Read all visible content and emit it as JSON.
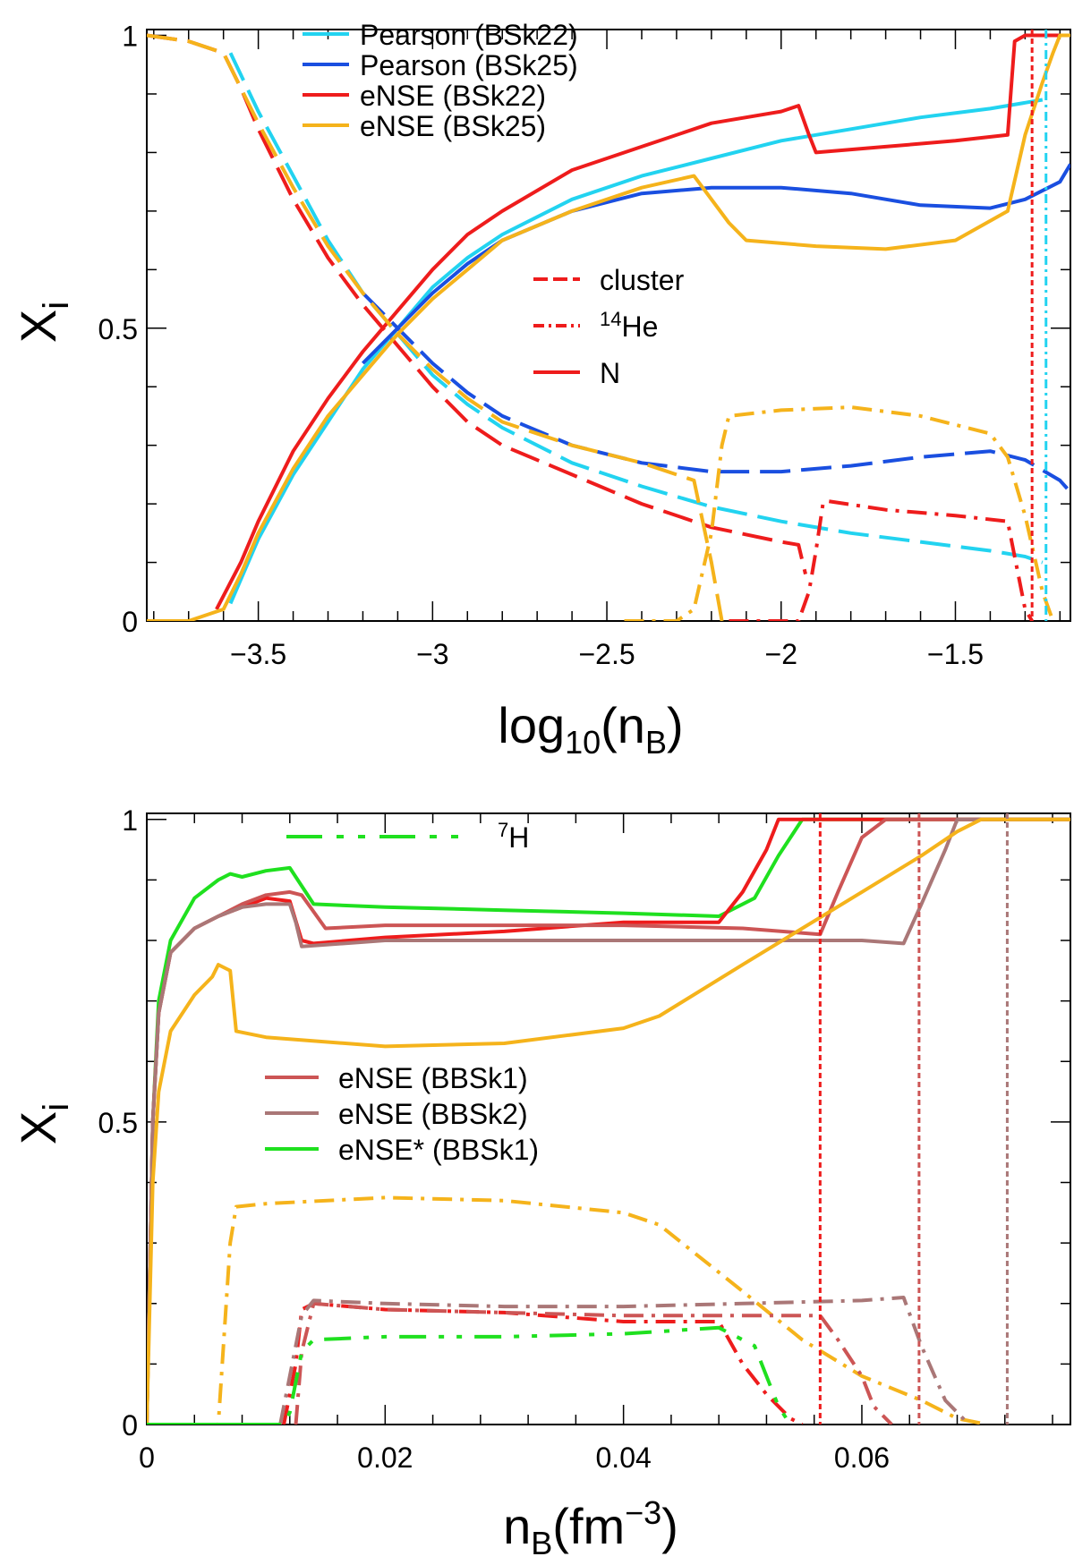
{
  "chart_data": [
    {
      "type": "line",
      "xlabel_base": "log",
      "xlabel_sub": "10",
      "xlabel_open": "(n",
      "xlabel_sub2": "B",
      "xlabel_close": ")",
      "ylabel_main": "X",
      "ylabel_sub": "i",
      "xlim": [
        -3.82,
        -1.17
      ],
      "ylim": [
        0,
        1.01
      ],
      "xticks": [
        -3.5,
        -3,
        -2.5,
        -2,
        -1.5
      ],
      "xtick_labels": [
        "−3.5",
        "−3",
        "−2.5",
        "−2",
        "−1.5"
      ],
      "yticks": [
        0,
        0.5,
        1
      ],
      "ytick_labels": [
        "0",
        "0.5",
        "1"
      ],
      "legend_models": [
        {
          "label": "Pearson (BSk22)",
          "color": "#22d3f0"
        },
        {
          "label": "Pearson (BSk25)",
          "color": "#1a4fe0"
        },
        {
          "label": "eNSE (BSk22)",
          "color": "#ee1c1c"
        },
        {
          "label": "eNSE (BSk25)",
          "color": "#f5b31b"
        }
      ],
      "legend_species": [
        {
          "label": "cluster",
          "style": "dashed",
          "color": "#ee1c1c"
        },
        {
          "sup": "14",
          "label": "He",
          "style": "dashdot",
          "color": "#ee1c1c"
        },
        {
          "label": "N",
          "style": "solid",
          "color": "#ee1c1c"
        }
      ],
      "vlines": [
        {
          "x": -1.28,
          "color": "#ee1c1c",
          "style": "dotted"
        },
        {
          "x": -1.24,
          "color": "#22d3f0",
          "style": "dashdot"
        }
      ],
      "series": [
        {
          "name": "Pearson (BSk22) N",
          "color": "#22d3f0",
          "style": "solid",
          "x": [
            -3.58,
            -3.5,
            -3.4,
            -3.3,
            -3.2,
            -3.1,
            -3.0,
            -2.9,
            -2.8,
            -2.6,
            -2.4,
            -2.2,
            -2.0,
            -1.8,
            -1.6,
            -1.4,
            -1.3,
            -1.25
          ],
          "y": [
            0.03,
            0.14,
            0.25,
            0.34,
            0.43,
            0.5,
            0.57,
            0.62,
            0.66,
            0.72,
            0.76,
            0.79,
            0.82,
            0.84,
            0.86,
            0.875,
            0.885,
            0.89
          ]
        },
        {
          "name": "Pearson (BSk22) cluster",
          "color": "#22d3f0",
          "style": "dashed",
          "x": [
            -3.58,
            -3.5,
            -3.4,
            -3.3,
            -3.2,
            -3.1,
            -3.0,
            -2.9,
            -2.8,
            -2.6,
            -2.4,
            -2.2,
            -2.0,
            -1.8,
            -1.6,
            -1.4,
            -1.3,
            -1.25
          ],
          "y": [
            0.97,
            0.87,
            0.76,
            0.65,
            0.56,
            0.49,
            0.42,
            0.37,
            0.33,
            0.27,
            0.23,
            0.195,
            0.17,
            0.15,
            0.135,
            0.12,
            0.11,
            0.1
          ]
        },
        {
          "name": "Pearson (BSk25) N",
          "color": "#1a4fe0",
          "style": "solid",
          "x": [
            -3.2,
            -3.1,
            -3.0,
            -2.9,
            -2.8,
            -2.6,
            -2.4,
            -2.2,
            -2.0,
            -1.8,
            -1.6,
            -1.4,
            -1.3,
            -1.2,
            -1.17
          ],
          "y": [
            0.44,
            0.5,
            0.56,
            0.61,
            0.65,
            0.7,
            0.73,
            0.74,
            0.74,
            0.73,
            0.71,
            0.705,
            0.72,
            0.75,
            0.78
          ]
        },
        {
          "name": "Pearson (BSk25) cluster",
          "color": "#1a4fe0",
          "style": "dashed",
          "x": [
            -3.2,
            -3.1,
            -3.0,
            -2.9,
            -2.8,
            -2.6,
            -2.4,
            -2.2,
            -2.0,
            -1.8,
            -1.6,
            -1.4,
            -1.3,
            -1.2,
            -1.17
          ],
          "y": [
            0.56,
            0.5,
            0.44,
            0.39,
            0.35,
            0.3,
            0.27,
            0.255,
            0.255,
            0.265,
            0.28,
            0.29,
            0.275,
            0.24,
            0.22
          ]
        },
        {
          "name": "eNSE (BSk22) N",
          "color": "#ee1c1c",
          "style": "solid",
          "x": [
            -3.62,
            -3.55,
            -3.5,
            -3.4,
            -3.3,
            -3.2,
            -3.1,
            -3.0,
            -2.9,
            -2.8,
            -2.6,
            -2.4,
            -2.2,
            -2.0,
            -1.95,
            -1.92,
            -1.9,
            -1.7,
            -1.5,
            -1.35,
            -1.33,
            -1.3,
            -1.17
          ],
          "y": [
            0.02,
            0.1,
            0.17,
            0.29,
            0.38,
            0.46,
            0.53,
            0.6,
            0.66,
            0.7,
            0.77,
            0.81,
            0.85,
            0.87,
            0.88,
            0.83,
            0.8,
            0.81,
            0.82,
            0.83,
            0.99,
            1.0,
            1.0
          ]
        },
        {
          "name": "eNSE (BSk22) cluster",
          "color": "#ee1c1c",
          "style": "dashed",
          "x": [
            -3.82,
            -3.7,
            -3.6,
            -3.55,
            -3.5,
            -3.4,
            -3.3,
            -3.2,
            -3.1,
            -3.0,
            -2.9,
            -2.8,
            -2.6,
            -2.4,
            -2.2,
            -2.0,
            -1.95,
            -1.93
          ],
          "y": [
            1.0,
            0.99,
            0.97,
            0.91,
            0.84,
            0.72,
            0.62,
            0.54,
            0.47,
            0.4,
            0.34,
            0.3,
            0.25,
            0.2,
            0.16,
            0.135,
            0.13,
            0.08
          ]
        },
        {
          "name": "eNSE (BSk22) 14He",
          "color": "#ee1c1c",
          "style": "dashdot",
          "x": [
            -2.15,
            -2.0,
            -1.95,
            -1.92,
            -1.9,
            -1.88,
            -1.87,
            -1.7,
            -1.5,
            -1.35,
            -1.32,
            -1.3,
            -1.28
          ],
          "y": [
            0.0,
            0.0,
            0.0,
            0.05,
            0.12,
            0.2,
            0.205,
            0.19,
            0.18,
            0.17,
            0.08,
            0.02,
            0.0
          ]
        },
        {
          "name": "eNSE (BSk25) N",
          "color": "#f5b31b",
          "style": "solid",
          "x": [
            -3.82,
            -3.7,
            -3.6,
            -3.55,
            -3.5,
            -3.4,
            -3.3,
            -3.2,
            -3.1,
            -3.0,
            -2.9,
            -2.8,
            -2.6,
            -2.4,
            -2.25,
            -2.15,
            -2.1,
            -1.9,
            -1.7,
            -1.5,
            -1.35,
            -1.3,
            -1.25,
            -1.22,
            -1.2,
            -1.17
          ],
          "y": [
            0.0,
            0.0,
            0.02,
            0.08,
            0.15,
            0.26,
            0.35,
            0.42,
            0.49,
            0.55,
            0.6,
            0.65,
            0.7,
            0.74,
            0.76,
            0.68,
            0.65,
            0.64,
            0.635,
            0.65,
            0.7,
            0.83,
            0.92,
            0.97,
            1.0,
            1.0
          ]
        },
        {
          "name": "eNSE (BSk25) cluster",
          "color": "#f5b31b",
          "style": "dashed",
          "x": [
            -3.82,
            -3.7,
            -3.6,
            -3.55,
            -3.5,
            -3.4,
            -3.3,
            -3.2,
            -3.1,
            -3.0,
            -2.9,
            -2.8,
            -2.6,
            -2.4,
            -2.3,
            -2.25,
            -2.2,
            -2.17
          ],
          "y": [
            1.0,
            0.99,
            0.97,
            0.91,
            0.85,
            0.74,
            0.64,
            0.56,
            0.49,
            0.43,
            0.38,
            0.34,
            0.3,
            0.27,
            0.25,
            0.24,
            0.1,
            0.0
          ]
        },
        {
          "name": "eNSE (BSk25) 14He",
          "color": "#f5b31b",
          "style": "dashdot",
          "x": [
            -2.45,
            -2.3,
            -2.25,
            -2.2,
            -2.17,
            -2.15,
            -2.0,
            -1.8,
            -1.6,
            -1.4,
            -1.35,
            -1.3,
            -1.25,
            -1.22
          ],
          "y": [
            0.0,
            0.0,
            0.02,
            0.15,
            0.3,
            0.35,
            0.36,
            0.365,
            0.35,
            0.32,
            0.28,
            0.18,
            0.05,
            0.0
          ]
        }
      ]
    },
    {
      "type": "line",
      "xlabel_base": "n",
      "xlabel_sub": "B",
      "xlabel_open": "(fm",
      "xlabel_sup": "−3",
      "xlabel_close": ")",
      "ylabel_main": "X",
      "ylabel_sub": "i",
      "xlim": [
        0,
        0.0775
      ],
      "ylim": [
        0,
        1.01
      ],
      "xticks": [
        0,
        0.02,
        0.04,
        0.06
      ],
      "xtick_labels": [
        "0",
        "0.02",
        "0.04",
        "0.06"
      ],
      "yticks": [
        0,
        0.5,
        1
      ],
      "ytick_labels": [
        "0",
        "0.5",
        "1"
      ],
      "legend_top": {
        "sup": "7",
        "label": "H",
        "color": "#1fe01f"
      },
      "legend_models": [
        {
          "label": "eNSE (BBSk1)",
          "color": "#cc5555"
        },
        {
          "label": "eNSE (BBSk2)",
          "color": "#aa7777"
        },
        {
          "label": "eNSE* (BBSk1)",
          "color": "#1fe01f"
        }
      ],
      "vlines": [
        {
          "x": 0.0565,
          "color": "#ee1c1c",
          "style": "dotted"
        },
        {
          "x": 0.0648,
          "color": "#cc5555",
          "style": "dotted"
        },
        {
          "x": 0.0722,
          "color": "#aa7777",
          "style": "dotted"
        }
      ],
      "series": [
        {
          "name": "eNSE* (BBSk1) N",
          "color": "#1fe01f",
          "style": "solid",
          "x": [
            0,
            0.0005,
            0.001,
            0.002,
            0.004,
            0.006,
            0.007,
            0.008,
            0.01,
            0.012,
            0.013,
            0.014,
            0.02,
            0.03,
            0.04,
            0.048,
            0.051,
            0.053,
            0.055,
            0.06,
            0.0775
          ],
          "y": [
            0,
            0.5,
            0.7,
            0.8,
            0.87,
            0.9,
            0.91,
            0.905,
            0.915,
            0.92,
            0.89,
            0.86,
            0.855,
            0.85,
            0.845,
            0.84,
            0.87,
            0.94,
            1.0,
            1.0,
            1.0
          ]
        },
        {
          "name": "eNSE (BSk22) N",
          "color": "#ee1c1c",
          "style": "solid",
          "x": [
            0,
            0.0005,
            0.001,
            0.002,
            0.004,
            0.006,
            0.008,
            0.01,
            0.012,
            0.013,
            0.014,
            0.02,
            0.03,
            0.04,
            0.048,
            0.05,
            0.052,
            0.053,
            0.0775
          ],
          "y": [
            0,
            0.5,
            0.68,
            0.78,
            0.82,
            0.84,
            0.855,
            0.87,
            0.865,
            0.8,
            0.795,
            0.805,
            0.815,
            0.83,
            0.83,
            0.88,
            0.95,
            1.0,
            1.0
          ]
        },
        {
          "name": "eNSE (BBSk1) N",
          "color": "#cc5555",
          "style": "solid",
          "x": [
            0,
            0.0005,
            0.001,
            0.002,
            0.004,
            0.006,
            0.008,
            0.01,
            0.012,
            0.013,
            0.015,
            0.02,
            0.03,
            0.04,
            0.05,
            0.0565,
            0.058,
            0.06,
            0.062,
            0.0775
          ],
          "y": [
            0,
            0.5,
            0.68,
            0.78,
            0.82,
            0.84,
            0.86,
            0.875,
            0.88,
            0.875,
            0.82,
            0.825,
            0.825,
            0.825,
            0.82,
            0.81,
            0.88,
            0.97,
            1.0,
            1.0
          ]
        },
        {
          "name": "eNSE (BBSk2) N",
          "color": "#aa7777",
          "style": "solid",
          "x": [
            0,
            0.0005,
            0.001,
            0.002,
            0.004,
            0.006,
            0.008,
            0.01,
            0.012,
            0.0125,
            0.013,
            0.02,
            0.03,
            0.04,
            0.05,
            0.06,
            0.0635,
            0.065,
            0.067,
            0.068,
            0.0775
          ],
          "y": [
            0,
            0.5,
            0.68,
            0.78,
            0.82,
            0.84,
            0.855,
            0.86,
            0.86,
            0.83,
            0.79,
            0.8,
            0.8,
            0.8,
            0.8,
            0.8,
            0.795,
            0.86,
            0.95,
            1.0,
            1.0
          ]
        },
        {
          "name": "eNSE (BSk25) N",
          "color": "#f5b31b",
          "style": "solid",
          "x": [
            0,
            0.0005,
            0.001,
            0.002,
            0.004,
            0.0055,
            0.006,
            0.007,
            0.0075,
            0.01,
            0.02,
            0.03,
            0.04,
            0.043,
            0.05,
            0.06,
            0.065,
            0.068,
            0.07,
            0.0775
          ],
          "y": [
            0,
            0.4,
            0.55,
            0.65,
            0.71,
            0.74,
            0.76,
            0.75,
            0.65,
            0.64,
            0.625,
            0.63,
            0.655,
            0.675,
            0.76,
            0.88,
            0.94,
            0.98,
            1.0,
            1.0
          ]
        },
        {
          "name": "eNSE (BSk25) 14He",
          "color": "#f5b31b",
          "style": "dashdot",
          "x": [
            0.0045,
            0.006,
            0.007,
            0.0075,
            0.01,
            0.02,
            0.03,
            0.04,
            0.043,
            0.05,
            0.055,
            0.06,
            0.065,
            0.068,
            0.0705
          ],
          "y": [
            0,
            0.0,
            0.3,
            0.36,
            0.365,
            0.375,
            0.37,
            0.35,
            0.33,
            0.22,
            0.14,
            0.08,
            0.04,
            0.01,
            0.0
          ]
        },
        {
          "name": "eNSE (BSk22) 14He",
          "color": "#ee1c1c",
          "style": "dashdot",
          "x": [
            0.0115,
            0.0125,
            0.013,
            0.014,
            0.02,
            0.03,
            0.04,
            0.048,
            0.05,
            0.052,
            0.054,
            0.055
          ],
          "y": [
            0,
            0.1,
            0.19,
            0.2,
            0.19,
            0.185,
            0.17,
            0.17,
            0.1,
            0.05,
            0.01,
            0.0
          ]
        },
        {
          "name": "eNSE (BBSk1) 14He",
          "color": "#cc5555",
          "style": "dashdot",
          "x": [
            0.0125,
            0.013,
            0.014,
            0.02,
            0.03,
            0.04,
            0.05,
            0.0565,
            0.058,
            0.06,
            0.061,
            0.0625
          ],
          "y": [
            0,
            0.12,
            0.2,
            0.19,
            0.185,
            0.18,
            0.18,
            0.18,
            0.14,
            0.08,
            0.03,
            0.0
          ]
        },
        {
          "name": "eNSE (BBSk2) 14He",
          "color": "#aa7777",
          "style": "dashdot",
          "x": [
            0.0112,
            0.012,
            0.013,
            0.014,
            0.02,
            0.03,
            0.04,
            0.05,
            0.06,
            0.0635,
            0.065,
            0.067,
            0.069
          ],
          "y": [
            0,
            0.08,
            0.18,
            0.205,
            0.2,
            0.195,
            0.195,
            0.2,
            0.205,
            0.21,
            0.13,
            0.04,
            0.0
          ]
        },
        {
          "name": "eNSE* (BBSk1) 7H",
          "color": "#1fe01f",
          "style": "dash7h",
          "x": [
            0.0075,
            0.0115,
            0.012,
            0.013,
            0.014,
            0.02,
            0.03,
            0.04,
            0.048,
            0.05,
            0.051,
            0.052,
            0.053,
            0.054
          ],
          "y": [
            0,
            0.0,
            0.02,
            0.12,
            0.14,
            0.145,
            0.145,
            0.15,
            0.16,
            0.14,
            0.13,
            0.08,
            0.03,
            0.0
          ]
        },
        {
          "name": "eNSE* (BBSk1) N zero",
          "color": "#1fe01f",
          "style": "solid",
          "x": [
            0.0,
            0.011
          ],
          "y": [
            0.0,
            0.0
          ]
        }
      ]
    }
  ]
}
